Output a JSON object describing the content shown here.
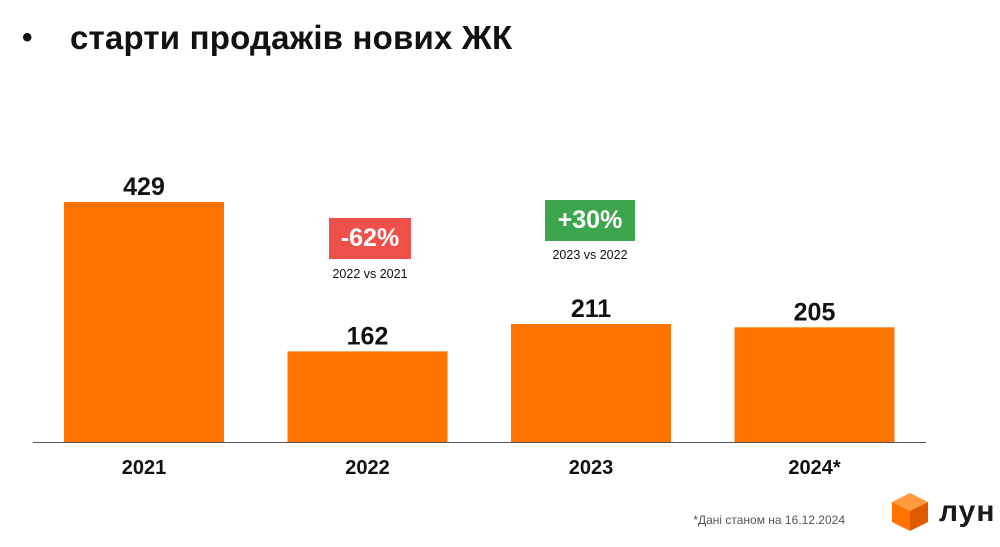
{
  "header": {
    "bullet": "•",
    "title": "старти продажів нових ЖК"
  },
  "chart_data": {
    "type": "bar",
    "categories": [
      "2021",
      "2022",
      "2023",
      "2024*"
    ],
    "values": [
      429,
      162,
      211,
      205
    ],
    "ylim": [
      0,
      429
    ],
    "bar_color": "#FF7300",
    "grid": false,
    "annotations": [
      {
        "value": "-62%",
        "note": "2022 vs 2021",
        "color": "#F0504A"
      },
      {
        "value": "+30%",
        "note": "2023 vs 2022",
        "color": "#3DA64C"
      }
    ]
  },
  "footnote": "*Дані станом на 16.12.2024",
  "brand": {
    "name": "лун",
    "icon": "cube-logo-icon",
    "color": "#FF7300"
  }
}
